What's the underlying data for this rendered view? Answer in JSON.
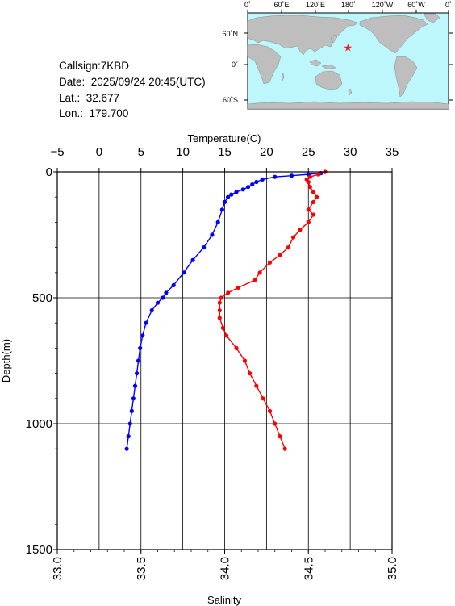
{
  "station": {
    "callsign": "Callsign:7KBD",
    "date": "Date:  2025/09/24 20:45(UTC)",
    "lat": "Lat.:  32.677",
    "lon": "Lon.:  179.700"
  },
  "map": {
    "lon_ticks": [
      "0˚",
      "60˚E",
      "120˚E",
      "180˚",
      "120˚W",
      "60˚W",
      "0˚"
    ],
    "lat_ticks": [
      "60˚N",
      "0˚",
      "60˚S"
    ],
    "station_lon": 179.7,
    "station_lat": 32.677,
    "marker": "star",
    "colors": {
      "ocean": "#bdf7fb",
      "land": "#bebebe",
      "marker": "#e8201e"
    }
  },
  "chart_data": {
    "type": "scatter",
    "y_axis": {
      "label": "Depth(m)",
      "range": [
        0,
        1500
      ],
      "reversed": true,
      "ticks": [
        0,
        500,
        1000,
        1500
      ]
    },
    "top_axis": {
      "label": "Temperature(C)",
      "range": [
        -5,
        35
      ],
      "ticks": [
        -5,
        0,
        5,
        10,
        15,
        20,
        25,
        30,
        35
      ]
    },
    "bottom_axis": {
      "label": "Salinity",
      "range": [
        33.0,
        35.0
      ],
      "ticks": [
        "33.0",
        "33.5",
        "34.0",
        "34.5",
        "35.0"
      ]
    },
    "grid": true,
    "series": [
      {
        "variable": "temperature",
        "axis": "top",
        "color": "#0000ff",
        "depth": [
          0,
          5,
          10,
          15,
          20,
          30,
          40,
          50,
          60,
          70,
          80,
          90,
          100,
          120,
          150,
          200,
          250,
          300,
          350,
          400,
          450,
          480,
          500,
          520,
          550,
          600,
          650,
          700,
          750,
          800,
          850,
          900,
          950,
          1000,
          1050,
          1100
        ],
        "values": [
          27.0,
          26.5,
          25.0,
          23.0,
          21.0,
          19.5,
          18.8,
          18.3,
          17.8,
          17.2,
          16.4,
          15.8,
          15.4,
          15.0,
          14.7,
          14.2,
          13.5,
          12.5,
          11.2,
          10.1,
          8.9,
          8.0,
          7.6,
          7.0,
          6.3,
          5.6,
          5.2,
          4.9,
          4.7,
          4.5,
          4.3,
          4.1,
          3.9,
          3.7,
          3.5,
          3.3
        ]
      },
      {
        "variable": "salinity",
        "axis": "bottom",
        "color": "#ff0000",
        "depth": [
          0,
          10,
          20,
          30,
          40,
          60,
          80,
          100,
          120,
          150,
          170,
          200,
          230,
          260,
          300,
          330,
          360,
          400,
          430,
          460,
          480,
          500,
          520,
          550,
          580,
          620,
          650,
          700,
          750,
          800,
          850,
          900,
          950,
          1000,
          1050,
          1100
        ],
        "values": [
          34.6,
          34.56,
          34.51,
          34.49,
          34.5,
          34.51,
          34.53,
          34.55,
          34.53,
          34.5,
          34.53,
          34.5,
          34.45,
          34.41,
          34.38,
          34.33,
          34.27,
          34.21,
          34.18,
          34.08,
          34.02,
          33.98,
          33.97,
          33.97,
          33.97,
          33.99,
          34.01,
          34.07,
          34.12,
          34.15,
          34.19,
          34.23,
          34.27,
          34.3,
          34.33,
          34.36
        ]
      }
    ]
  }
}
